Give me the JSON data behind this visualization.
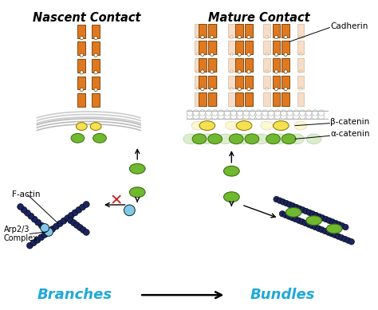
{
  "title_left": "Nascent Contact",
  "title_right": "Mature Contact",
  "label_branches": "Branches",
  "label_bundles": "Bundles",
  "label_cadherin": "Cadherin",
  "label_beta_catenin": "β-catenin",
  "label_alpha_catenin": "α-catenin",
  "label_factin": "F-actin",
  "label_arp": "Arp2/3\nComplex",
  "color_orange": "#E07820",
  "color_orange_light": "#F0A050",
  "color_yellow": "#F5E050",
  "color_green": "#70B830",
  "color_green_dark": "#3A7010",
  "color_blue_dark": "#1A2560",
  "color_blue_light": "#80C8E8",
  "color_cyan_text": "#20A8D8",
  "color_red": "#CC2020",
  "color_membrane": "#B0B0B0",
  "color_membrane_light": "#D8D8D8",
  "bg": "#FFFFFF"
}
